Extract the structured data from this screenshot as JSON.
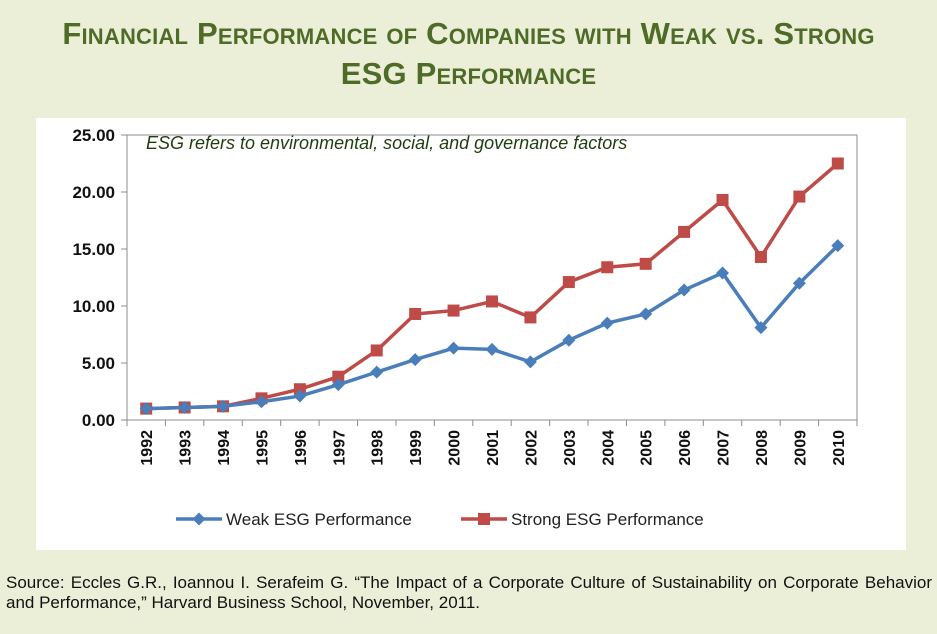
{
  "title_line1": "Financial Performance of Companies with Weak vs. Strong",
  "title_line2": "ESG Performance",
  "annotation": "ESG refers to environmental, social, and governance factors",
  "source": "Source: Eccles G.R., Ioannou I. Serafeim G. “The Impact of a Corporate Culture of Sustainability on Corporate Behavior and Performance,” Harvard Business School, November, 2011.",
  "colors": {
    "weak": "#4a7ebb",
    "strong": "#be4b48",
    "title": "#4f6b28",
    "background": "#ecefd8"
  },
  "chart_data": {
    "type": "line",
    "x": [
      "1992",
      "1993",
      "1994",
      "1995",
      "1996",
      "1997",
      "1998",
      "1999",
      "2000",
      "2001",
      "2002",
      "2003",
      "2004",
      "2005",
      "2006",
      "2007",
      "2008",
      "2009",
      "2010"
    ],
    "ylim": [
      0,
      25
    ],
    "yticks": [
      "0.00",
      "5.00",
      "10.00",
      "15.00",
      "20.00",
      "25.00"
    ],
    "grid": false,
    "legend_position": "bottom",
    "series": [
      {
        "name": "Weak ESG Performance",
        "marker": "diamond",
        "values": [
          1.0,
          1.1,
          1.2,
          1.6,
          2.1,
          3.1,
          4.2,
          5.3,
          6.3,
          6.2,
          5.1,
          7.0,
          8.5,
          9.3,
          11.4,
          12.9,
          8.1,
          12.0,
          15.3
        ]
      },
      {
        "name": "Strong ESG Performance",
        "marker": "square",
        "values": [
          1.0,
          1.1,
          1.2,
          1.9,
          2.7,
          3.8,
          6.1,
          9.3,
          9.6,
          10.4,
          9.0,
          12.1,
          13.4,
          13.7,
          16.5,
          19.3,
          14.3,
          19.6,
          22.5
        ]
      }
    ]
  }
}
